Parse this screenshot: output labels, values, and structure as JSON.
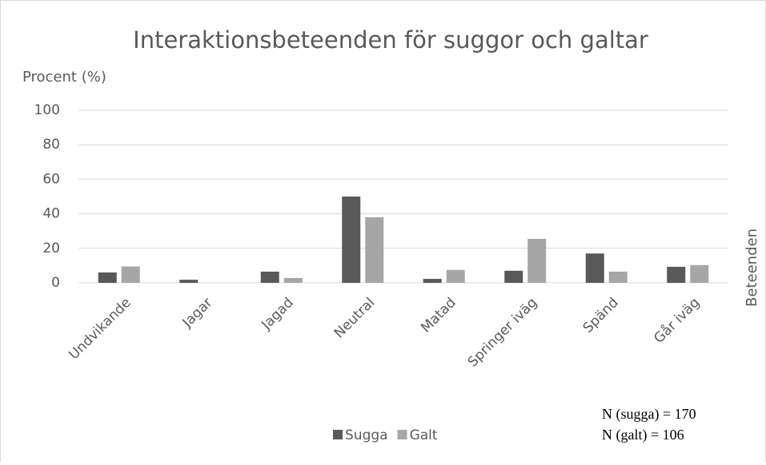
{
  "chart_data": {
    "type": "bar",
    "title": "Interaktionsbeteenden för suggor och galtar",
    "y_label": "Procent (%)",
    "x_label": "Beteenden",
    "categories": [
      "Undvikande",
      "Jagar",
      "Jagad",
      "Neutral",
      "Matad",
      "Springer iväg",
      "Spänd",
      "Går iväg"
    ],
    "series": [
      {
        "name": "Sugga",
        "color": "#595959",
        "values": [
          6,
          1.8,
          6.5,
          50,
          2.3,
          7,
          17,
          9.3
        ]
      },
      {
        "name": "Galt",
        "color": "#a6a6a6",
        "values": [
          9.5,
          0,
          2.8,
          38,
          7.5,
          25.5,
          6.5,
          10.3
        ]
      }
    ],
    "ylim": [
      0,
      100
    ],
    "yticks": [
      0,
      20,
      40,
      60,
      80,
      100
    ],
    "grid": true,
    "legend": "bottom",
    "annotations": [
      "N (sugga) = 170",
      "N (galt) = 106"
    ]
  }
}
